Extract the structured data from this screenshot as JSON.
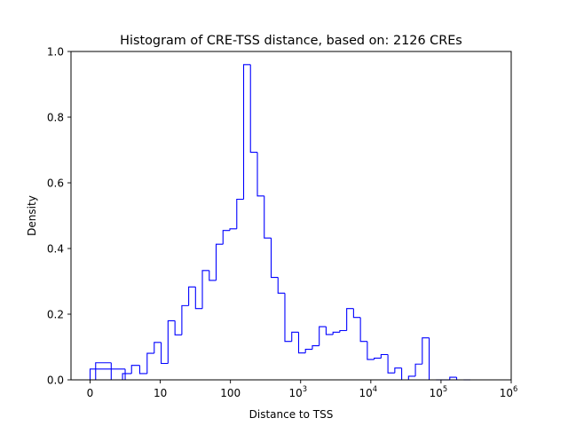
{
  "chart_data": {
    "type": "histogram",
    "title": "Histogram of CRE-TSS distance, based on: 2126 CREs",
    "xlabel": "Distance to TSS",
    "ylabel": "Density",
    "x_scale": "symlog",
    "xlim": [
      0,
      1000000
    ],
    "ylim": [
      0,
      1.0
    ],
    "grid": false,
    "histtype": "step",
    "line_color": "#0000ff",
    "x_ticks": [
      {
        "value": 0,
        "base": "0",
        "exp": ""
      },
      {
        "value": 10,
        "base": "10",
        "exp": ""
      },
      {
        "value": 100,
        "base": "100",
        "exp": ""
      },
      {
        "value": 1000,
        "base": "10",
        "exp": "3"
      },
      {
        "value": 10000,
        "base": "10",
        "exp": "4"
      },
      {
        "value": 100000,
        "base": "10",
        "exp": "5"
      },
      {
        "value": 1000000,
        "base": "10",
        "exp": "6"
      }
    ],
    "y_ticks": [
      "0.0",
      "0.2",
      "0.4",
      "0.6",
      "0.8",
      "1.0"
    ],
    "y_tick_values": [
      0,
      0.2,
      0.4,
      0.6,
      0.8,
      1.0
    ],
    "bin_edges": [
      0,
      0.5,
      1.2,
      2,
      2.9,
      3.9,
      5.1,
      6.5,
      8.2,
      10.3,
      12.9,
      16.2,
      20.3,
      25.4,
      31.8,
      39.8,
      49.9,
      62.5,
      78.3,
      98.1,
      123,
      154,
      193,
      242,
      303,
      380,
      476,
      596,
      747,
      936,
      1172,
      1469,
      1840,
      2305,
      2888,
      3618,
      4532,
      5678,
      7114,
      8913,
      11166,
      13989,
      17526,
      21957,
      27508,
      34463,
      43177,
      54093,
      67770,
      84906,
      106373,
      133268,
      166964,
      209179,
      262066
    ],
    "values": [
      0.033,
      0.0,
      0.052,
      0.0,
      0.019,
      0.044,
      0.019,
      0.081,
      0.114,
      0.05,
      0.18,
      0.137,
      0.226,
      0.283,
      0.217,
      0.333,
      0.303,
      0.413,
      0.455,
      0.46,
      0.55,
      0.96,
      0.693,
      0.56,
      0.432,
      0.312,
      0.264,
      0.117,
      0.145,
      0.082,
      0.093,
      0.104,
      0.162,
      0.138,
      0.145,
      0.15,
      0.217,
      0.19,
      0.117,
      0.062,
      0.066,
      0.077,
      0.021,
      0.036,
      0.0,
      0.011,
      0.048,
      0.128,
      0.0,
      0.0,
      0.0,
      0.008,
      0.0,
      0.0
    ]
  }
}
